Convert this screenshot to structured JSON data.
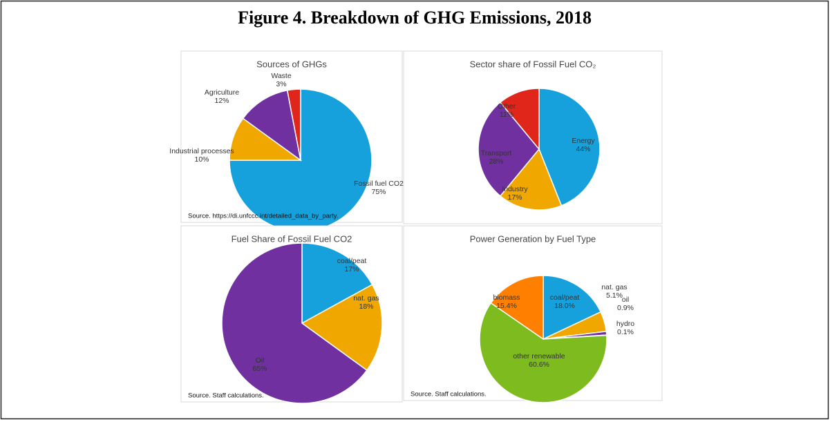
{
  "figure_title": "Figure 4. Breakdown of GHG Emissions, 2018",
  "chart_data": [
    {
      "type": "pie",
      "title": "Sources of GHGs",
      "categories": [
        "Fossil fuel CO2",
        "Industrial processes",
        "Agriculture",
        "Waste"
      ],
      "values": [
        75,
        10,
        12,
        3
      ],
      "value_labels": [
        "75%",
        "10%",
        "12%",
        "3%"
      ],
      "colors": [
        "#16a1dd",
        "#f0a800",
        "#7030a0",
        "#e0251b"
      ],
      "source": "Source. https://di.unfccc.int/detailed_data_by_party."
    },
    {
      "type": "pie",
      "title": "Sector share of Fossil Fuel CO₂",
      "categories": [
        "Energy",
        "Industry",
        "Transport",
        "Other"
      ],
      "values": [
        44,
        17,
        28,
        11
      ],
      "value_labels": [
        "44%",
        "17%",
        "28%",
        "11%"
      ],
      "colors": [
        "#16a1dd",
        "#f0a800",
        "#7030a0",
        "#e0251b"
      ]
    },
    {
      "type": "pie",
      "title": "Fuel Share of Fossil Fuel CO2",
      "categories": [
        "coal/peat",
        "nat. gas",
        "Oil"
      ],
      "values": [
        17,
        18,
        65
      ],
      "value_labels": [
        "17%",
        "18%",
        "65%"
      ],
      "colors": [
        "#16a1dd",
        "#f0a800",
        "#7030a0"
      ],
      "source": "Source. Staff calculations."
    },
    {
      "type": "pie",
      "title": "Power Generation by Fuel Type",
      "categories": [
        "coal/peat",
        "nat. gas",
        "oil",
        "hydro",
        "other renewable",
        "biomass"
      ],
      "values": [
        18.0,
        5.1,
        0.9,
        0.1,
        60.6,
        15.4
      ],
      "value_labels": [
        "18.0%",
        "5.1%",
        "0.9%",
        "0.1%",
        "60.6%",
        "15.4%"
      ],
      "colors": [
        "#16a1dd",
        "#f0a800",
        "#7030a0",
        "#1f4e9a",
        "#7dbb1f",
        "#ff8000"
      ],
      "source": "Source. Staff calculations."
    }
  ]
}
